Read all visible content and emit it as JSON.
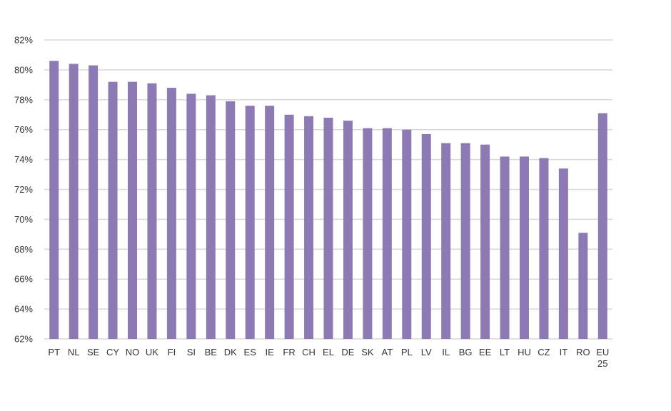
{
  "chart_data": {
    "type": "bar",
    "title": "",
    "xlabel": "",
    "ylabel": "",
    "categories": [
      "PT",
      "NL",
      "SE",
      "CY",
      "NO",
      "UK",
      "FI",
      "SI",
      "BE",
      "DK",
      "ES",
      "IE",
      "FR",
      "CH",
      "EL",
      "DE",
      "SK",
      "AT",
      "PL",
      "LV",
      "IL",
      "BG",
      "EE",
      "LT",
      "HU",
      "CZ",
      "IT",
      "RO",
      "EU 25"
    ],
    "values": [
      80.6,
      80.4,
      80.3,
      79.2,
      79.2,
      79.1,
      78.8,
      78.4,
      78.3,
      77.9,
      77.6,
      77.6,
      77.0,
      76.9,
      76.8,
      76.6,
      76.1,
      76.1,
      76.0,
      75.7,
      75.1,
      75.1,
      75.0,
      74.2,
      74.2,
      74.1,
      73.4,
      69.1,
      77.1
    ],
    "ylim": [
      62,
      82
    ],
    "yticks": [
      62,
      64,
      66,
      68,
      70,
      72,
      74,
      76,
      78,
      80,
      82
    ],
    "ytick_labels": [
      "62%",
      "64%",
      "66%",
      "68%",
      "70%",
      "72%",
      "74%",
      "76%",
      "78%",
      "80%",
      "82%"
    ],
    "grid": true,
    "legend": "none",
    "bar_color": "#8d79b4",
    "grid_color": "#d9d9d9"
  }
}
